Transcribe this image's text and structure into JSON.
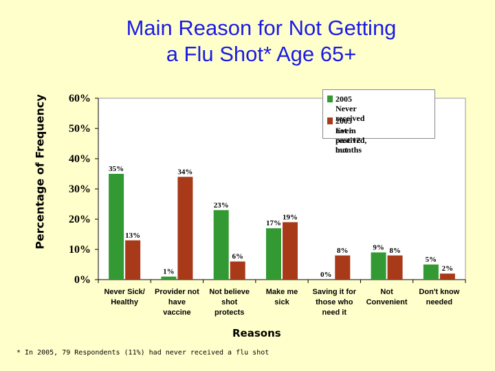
{
  "colors": {
    "never": "#339933",
    "ever": "#a83a1a",
    "background": "#ffffcc",
    "title": "#1a1ae6"
  },
  "chart_data": {
    "type": "bar",
    "title_line1": "Main Reason for Not Getting",
    "title_line2": "a Flu Shot* Age 65+",
    "xlabel": "Reasons",
    "ylabel": "Percentage of Frequency",
    "ylim": [
      0,
      60
    ],
    "yticks": [
      "0%",
      "10%",
      "20%",
      "30%",
      "40%",
      "50%",
      "60%"
    ],
    "categories": [
      [
        "Never Sick/",
        "Healthy"
      ],
      [
        "Provider not",
        "have",
        "vaccine"
      ],
      [
        "Not believe",
        "shot",
        "protects"
      ],
      [
        "Make  me",
        "sick"
      ],
      [
        "Saving it for",
        "those who",
        "need it"
      ],
      [
        "Not",
        "Convenient"
      ],
      [
        "Don't  know",
        "needed"
      ]
    ],
    "series": [
      {
        "name": "2005 Never received",
        "values": [
          35,
          1,
          23,
          17,
          0,
          9,
          5
        ],
        "labels": [
          "35%",
          "1%",
          "23%",
          "17%",
          "0%",
          "9%",
          "5%"
        ]
      },
      {
        "name": "2005 Ever received,  but not in  past 12 months",
        "values": [
          13,
          34,
          6,
          19,
          8,
          8,
          2
        ],
        "labels": [
          "13%",
          "34%",
          "6%",
          "19%",
          "8%",
          "8%",
          "2%"
        ]
      }
    ],
    "legend": {
      "never_label": "2005 Never received",
      "ever_label_line1": "2005 Ever received,  but",
      "ever_label_line2": "not in  past 12 months",
      "position": "top-right"
    },
    "footnote": "* In 2005,  79 Respondents (11%) had never received a flu shot"
  }
}
